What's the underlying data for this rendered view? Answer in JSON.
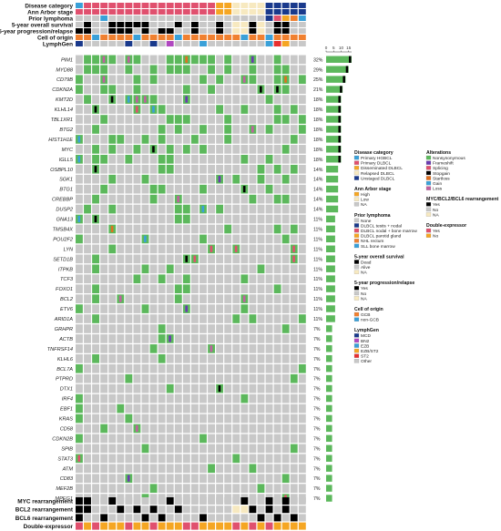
{
  "colors": {
    "grey": "#c8c8c8",
    "nonsyn": "#5cb85c",
    "hgbcl": "#3aa0d8",
    "primary_dlbcl": "#e0506e",
    "dissem": "#f5a623",
    "relapsed": "#f7e9c0",
    "unstaged": "#1a3a8c",
    "high": "#f5a623",
    "low": "#f7e9c0",
    "black": "#000000",
    "gcb": "#f08030",
    "nongcb": "#3aa0d8"
  },
  "clinical_tracks": [
    {
      "label": "Disease category",
      "key": "disease"
    },
    {
      "label": "Ann Arbor stage",
      "key": "stage"
    },
    {
      "label": "Prior lymphoma",
      "key": "prior"
    },
    {
      "label": "5-year overall survival",
      "key": "os"
    },
    {
      "label": "5-year progression/relapse",
      "key": "pfs"
    },
    {
      "label": "Cell of origin",
      "key": "coo"
    },
    {
      "label": "LymphGen",
      "key": "lymphgen"
    }
  ],
  "genes": [
    {
      "name": "PIM1",
      "pct": "32%",
      "freq": 17
    },
    {
      "name": "MYD88",
      "pct": "29%",
      "freq": 15
    },
    {
      "name": "CD79B",
      "pct": "25%",
      "freq": 13
    },
    {
      "name": "CDKN2A",
      "pct": "21%",
      "freq": 11
    },
    {
      "name": "KMT2D",
      "pct": "18%",
      "freq": 10
    },
    {
      "name": "KLHL14",
      "pct": "18%",
      "freq": 10
    },
    {
      "name": "TBL1XR1",
      "pct": "18%",
      "freq": 10
    },
    {
      "name": "BTG2",
      "pct": "18%",
      "freq": 10
    },
    {
      "name": "HIST1H1E",
      "pct": "18%",
      "freq": 10
    },
    {
      "name": "MYC",
      "pct": "18%",
      "freq": 10
    },
    {
      "name": "IGLL5",
      "pct": "18%",
      "freq": 10
    },
    {
      "name": "OSBPL10",
      "pct": "14%",
      "freq": 8
    },
    {
      "name": "SGK1",
      "pct": "14%",
      "freq": 8
    },
    {
      "name": "BTG1",
      "pct": "14%",
      "freq": 8
    },
    {
      "name": "CREBBP",
      "pct": "14%",
      "freq": 8
    },
    {
      "name": "DUSP2",
      "pct": "14%",
      "freq": 8
    },
    {
      "name": "GNA13",
      "pct": "11%",
      "freq": 6
    },
    {
      "name": "TMSB4X",
      "pct": "11%",
      "freq": 6
    },
    {
      "name": "POU2F2",
      "pct": "11%",
      "freq": 6
    },
    {
      "name": "LYN",
      "pct": "11%",
      "freq": 6
    },
    {
      "name": "SETD1B",
      "pct": "11%",
      "freq": 6
    },
    {
      "name": "ITPKB",
      "pct": "11%",
      "freq": 6
    },
    {
      "name": "TCF3",
      "pct": "11%",
      "freq": 6
    },
    {
      "name": "FOXO1",
      "pct": "11%",
      "freq": 6
    },
    {
      "name": "BCL2",
      "pct": "11%",
      "freq": 6
    },
    {
      "name": "ETV6",
      "pct": "11%",
      "freq": 6
    },
    {
      "name": "ARID1A",
      "pct": "11%",
      "freq": 6
    },
    {
      "name": "GRHPR",
      "pct": "7%",
      "freq": 4
    },
    {
      "name": "ACTB",
      "pct": "7%",
      "freq": 4
    },
    {
      "name": "TNFRSF14",
      "pct": "7%",
      "freq": 4
    },
    {
      "name": "KLHL6",
      "pct": "7%",
      "freq": 4
    },
    {
      "name": "BCL7A",
      "pct": "7%",
      "freq": 4
    },
    {
      "name": "PTPRD",
      "pct": "7%",
      "freq": 4
    },
    {
      "name": "DTX1",
      "pct": "7%",
      "freq": 4
    },
    {
      "name": "IRF4",
      "pct": "7%",
      "freq": 4
    },
    {
      "name": "EBF1",
      "pct": "7%",
      "freq": 4
    },
    {
      "name": "KRAS",
      "pct": "7%",
      "freq": 4
    },
    {
      "name": "CD58",
      "pct": "7%",
      "freq": 4
    },
    {
      "name": "CDKN2B",
      "pct": "7%",
      "freq": 4
    },
    {
      "name": "SPIB",
      "pct": "7%",
      "freq": 4
    },
    {
      "name": "STAT3",
      "pct": "7%",
      "freq": 4
    },
    {
      "name": "ATM",
      "pct": "7%",
      "freq": 4
    },
    {
      "name": "CD83",
      "pct": "7%",
      "freq": 4
    },
    {
      "name": "MEF2B",
      "pct": "7%",
      "freq": 4
    },
    {
      "name": "MPEG1",
      "pct": "7%",
      "freq": 4
    }
  ],
  "bottom_tracks": [
    {
      "label": "MYC rearrangement"
    },
    {
      "label": "BCL2 rearrangement"
    },
    {
      "label": "BCL6 rearrangement"
    },
    {
      "label": "Double-expressor"
    }
  ],
  "freq_axis": {
    "ticks": [
      "0",
      "5",
      "10",
      "15"
    ],
    "max": 17
  },
  "legends": [
    {
      "title": "Disease category",
      "items": [
        {
          "label": "Primary HGBCL",
          "color": "#3aa0d8"
        },
        {
          "label": "Primary DLBCL",
          "color": "#e0506e"
        },
        {
          "label": "Disseminated DLBCL",
          "color": "#f5a623"
        },
        {
          "label": "Relapsed DLBCL",
          "color": "#f7e9c0"
        },
        {
          "label": "Unstaged DLBCL",
          "color": "#1a3a8c"
        }
      ]
    },
    {
      "title": "Ann Arbor stage",
      "items": [
        {
          "label": "High",
          "color": "#f5a623"
        },
        {
          "label": "Low",
          "color": "#f7e9c0"
        },
        {
          "label": "NA",
          "color": "#c8c8c8"
        }
      ]
    },
    {
      "title": "Prior lymphoma",
      "items": [
        {
          "label": "None",
          "color": "#c8c8c8"
        },
        {
          "label": "DLBCL testis + nodal",
          "color": "#1a3a8c"
        },
        {
          "label": "DLBCL nodal + bone marrow",
          "color": "#e0506e"
        },
        {
          "label": "DLBCL parotid gland",
          "color": "#f5a623"
        },
        {
          "label": "NHL rectum",
          "color": "#f08030"
        },
        {
          "label": "SLL bone marrow",
          "color": "#3aa0d8"
        }
      ]
    },
    {
      "title": "5-year overall survival",
      "items": [
        {
          "label": "Dead",
          "color": "#000000"
        },
        {
          "label": "Alive",
          "color": "#c8c8c8"
        },
        {
          "label": "NA",
          "color": "#f7e9c0"
        }
      ]
    },
    {
      "title": "5-year progression/relapse",
      "items": [
        {
          "label": "Yes",
          "color": "#000000"
        },
        {
          "label": "No",
          "color": "#c8c8c8"
        },
        {
          "label": "NA",
          "color": "#f7e9c0"
        }
      ]
    },
    {
      "title": "Cell of origin",
      "items": [
        {
          "label": "GCB",
          "color": "#f08030"
        },
        {
          "label": "non-GCB",
          "color": "#3aa0d8"
        }
      ]
    },
    {
      "title": "LymphGen",
      "items": [
        {
          "label": "MCD",
          "color": "#1a3a8c"
        },
        {
          "label": "BN2",
          "color": "#b048c0"
        },
        {
          "label": "EZB",
          "color": "#3aa0d8"
        },
        {
          "label": "EZB/ST2",
          "color": "#f5a623"
        },
        {
          "label": "ST2",
          "color": "#e83030"
        },
        {
          "label": "Other",
          "color": "#c8c8c8"
        }
      ]
    }
  ],
  "legends_right": [
    {
      "title": "Alterations",
      "items": [
        {
          "label": "Nonsynonymous",
          "color": "#5cb85c"
        },
        {
          "label": "Frameshift",
          "color": "#6a3ab0"
        },
        {
          "label": "Splicing",
          "color": "#e0506e"
        },
        {
          "label": "Stopgain",
          "color": "#000000"
        },
        {
          "label": "Startloss",
          "color": "#e07020"
        },
        {
          "label": "Gain",
          "color": "#3aa0d8"
        },
        {
          "label": "Loss",
          "color": "#c060a0"
        }
      ]
    },
    {
      "title": "MYC/BCL2/BCL6 rearrangement",
      "items": [
        {
          "label": "Yes",
          "color": "#000000"
        },
        {
          "label": "No",
          "color": "#c8c8c8"
        },
        {
          "label": "NA",
          "color": "#f7e9c0"
        }
      ]
    },
    {
      "title": "Double-expressor",
      "items": [
        {
          "label": "Yes",
          "color": "#e0506e"
        },
        {
          "label": "No",
          "color": "#f5a623"
        }
      ]
    }
  ]
}
